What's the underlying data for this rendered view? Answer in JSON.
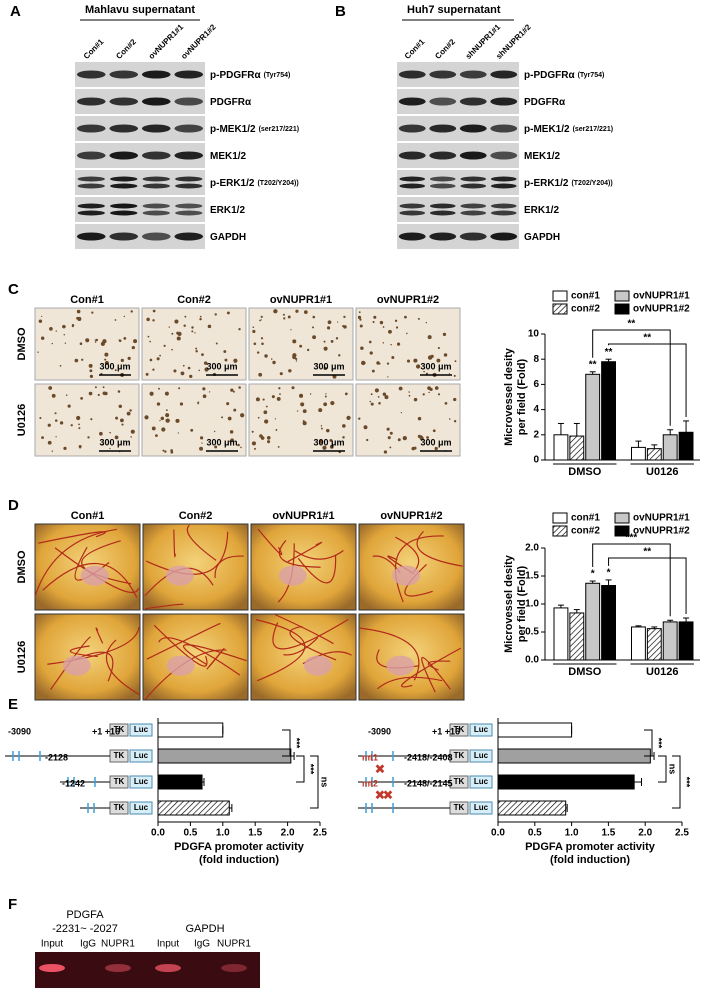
{
  "panel_a": {
    "letter": "A",
    "title": "Mahlavu supernatant",
    "lanes": [
      "Con#1",
      "Con#2",
      "ovNUPR1#1",
      "ovNUPR1#2"
    ],
    "rows": [
      {
        "label": "p-PDGFRα",
        "sub": "(Tyr754)"
      },
      {
        "label": "PDGFRα"
      },
      {
        "label": "p-MEK1/2",
        "sub": "(ser217/221)"
      },
      {
        "label": "MEK1/2"
      },
      {
        "label": "p-ERK1/2",
        "sub": "(T202/Y204))"
      },
      {
        "label": "ERK1/2"
      },
      {
        "label": "GAPDH"
      }
    ]
  },
  "panel_b": {
    "letter": "B",
    "title": "Huh7 supernatant",
    "lanes": [
      "Con#1",
      "Con#2",
      "shNUPR1#1",
      "shNUPR1#2"
    ],
    "rows": [
      {
        "label": "p-PDGFRα",
        "sub": "(Tyr754)"
      },
      {
        "label": "PDGFRα"
      },
      {
        "label": "p-MEK1/2",
        "sub": "(ser217/221)"
      },
      {
        "label": "MEK1/2"
      },
      {
        "label": "p-ERK1/2",
        "sub": "(T202/Y204))"
      },
      {
        "label": "ERK1/2"
      },
      {
        "label": "GAPDH"
      }
    ]
  },
  "panel_c": {
    "letter": "C",
    "columns": [
      "Con#1",
      "Con#2",
      "ovNUPR1#1",
      "ovNUPR1#2"
    ],
    "rows": [
      "DMSO",
      "U0126"
    ],
    "scale_bar": "300 μm"
  },
  "panel_d": {
    "letter": "D",
    "columns": [
      "Con#1",
      "Con#2",
      "ovNUPR1#1",
      "ovNUPR1#2"
    ],
    "rows": [
      "DMSO",
      "U0126"
    ]
  },
  "panel_e": {
    "letter": "E",
    "tk": "TK",
    "luc": "Luc",
    "left": [
      "-3090",
      "+1 +16",
      "-2128",
      "-1242"
    ],
    "right": [
      "-3090",
      "+1 +16",
      "mt1",
      "-2418/-2408",
      "mt2",
      "-2148/-2145"
    ]
  },
  "panel_f": {
    "letter": "F",
    "target": "PDGFA",
    "region": "-2231~ -2027",
    "control": "GAPDH",
    "lanes": [
      "Input",
      "IgG",
      "NUPR1",
      "Input",
      "IgG",
      "NUPR1"
    ]
  },
  "chart_data": [
    {
      "type": "bar",
      "ylabel": [
        "Microvessel desity",
        "per field (Fold)"
      ],
      "categories": [
        "DMSO",
        "U0126"
      ],
      "ylim": [
        0,
        10
      ],
      "yticks": [
        0,
        2,
        4,
        6,
        8,
        10
      ],
      "series": [
        {
          "name": "con#1",
          "color": "#ffffff",
          "hatched": false,
          "values": [
            2.0,
            1.0
          ],
          "errors": [
            0.9,
            0.5
          ]
        },
        {
          "name": "con#2",
          "color": "#ffffff",
          "hatched": true,
          "values": [
            1.9,
            0.9
          ],
          "errors": [
            1.0,
            0.3
          ]
        },
        {
          "name": "ovNUPR1#1",
          "color": "#c8c8c8",
          "hatched": false,
          "values": [
            6.8,
            2.0
          ],
          "errors": [
            0.2,
            0.4
          ]
        },
        {
          "name": "ovNUPR1#2",
          "color": "#000000",
          "hatched": false,
          "values": [
            7.8,
            2.2
          ],
          "errors": [
            0.2,
            0.9
          ]
        }
      ],
      "annotations": [
        "**",
        "**",
        "**",
        "**"
      ]
    },
    {
      "type": "bar",
      "ylabel": [
        "Microvessel desity",
        "per field (Fold)"
      ],
      "categories": [
        "DMSO",
        "U0126"
      ],
      "ylim": [
        0,
        2.0
      ],
      "yticks": [
        {
          "value": 0,
          "label": "0.0"
        },
        {
          "value": 0.5,
          "label": "0.5"
        },
        {
          "value": 1,
          "label": "1.0"
        },
        {
          "value": 1.5,
          "label": "1.5"
        },
        {
          "value": 2,
          "label": "2.0"
        }
      ],
      "series": [
        {
          "name": "con#1",
          "color": "#ffffff",
          "hatched": false,
          "values": [
            0.93,
            0.59
          ],
          "errors": [
            0.05,
            0.02
          ]
        },
        {
          "name": "con#2",
          "color": "#ffffff",
          "hatched": true,
          "values": [
            0.84,
            0.56
          ],
          "errors": [
            0.06,
            0.03
          ]
        },
        {
          "name": "ovNUPR1#1",
          "color": "#c8c8c8",
          "hatched": false,
          "values": [
            1.37,
            0.68
          ],
          "errors": [
            0.04,
            0.03
          ]
        },
        {
          "name": "ovNUPR1#2",
          "color": "#000000",
          "hatched": false,
          "values": [
            1.33,
            0.68
          ],
          "errors": [
            0.1,
            0.07
          ]
        }
      ],
      "annotations": [
        "*",
        "*",
        "***",
        "**"
      ]
    },
    {
      "type": "hbar",
      "xlabel": [
        "PDGFA promoter activity",
        "(fold induction)"
      ],
      "xlim": [
        0,
        2.5
      ],
      "xticks": [
        {
          "value": 0,
          "label": "0.0"
        },
        {
          "value": 0.5,
          "label": "0.5"
        },
        {
          "value": 1,
          "label": "1.0"
        },
        {
          "value": 1.5,
          "label": "1.5"
        },
        {
          "value": 2,
          "label": "2.0"
        },
        {
          "value": 2.5,
          "label": "2.5"
        }
      ],
      "values": [
        1.0,
        2.05,
        0.68,
        1.1
      ],
      "errors": [
        0,
        0.05,
        0.03,
        0.04
      ],
      "colors": [
        "#ffffff",
        "#a0a0a0",
        "#000000",
        "#ffffff"
      ],
      "hatched": [
        false,
        false,
        false,
        true
      ],
      "annotations": [
        "***",
        "***",
        "ns"
      ]
    },
    {
      "type": "hbar",
      "xlabel": [
        "PDGFA promoter activity",
        "(fold induction)"
      ],
      "xlim": [
        0,
        2.5
      ],
      "xticks": [
        {
          "value": 0,
          "label": "0.0"
        },
        {
          "value": 0.5,
          "label": "0.5"
        },
        {
          "value": 1,
          "label": "1.0"
        },
        {
          "value": 1.5,
          "label": "1.5"
        },
        {
          "value": 2,
          "label": "2.0"
        },
        {
          "value": 2.5,
          "label": "2.5"
        }
      ],
      "values": [
        1.0,
        2.07,
        1.85,
        0.92
      ],
      "errors": [
        0,
        0.05,
        0.1,
        0.02
      ],
      "colors": [
        "#ffffff",
        "#a0a0a0",
        "#000000",
        "#ffffff"
      ],
      "hatched": [
        false,
        false,
        false,
        true
      ],
      "annotations": [
        "***",
        "ns",
        "***"
      ]
    }
  ]
}
